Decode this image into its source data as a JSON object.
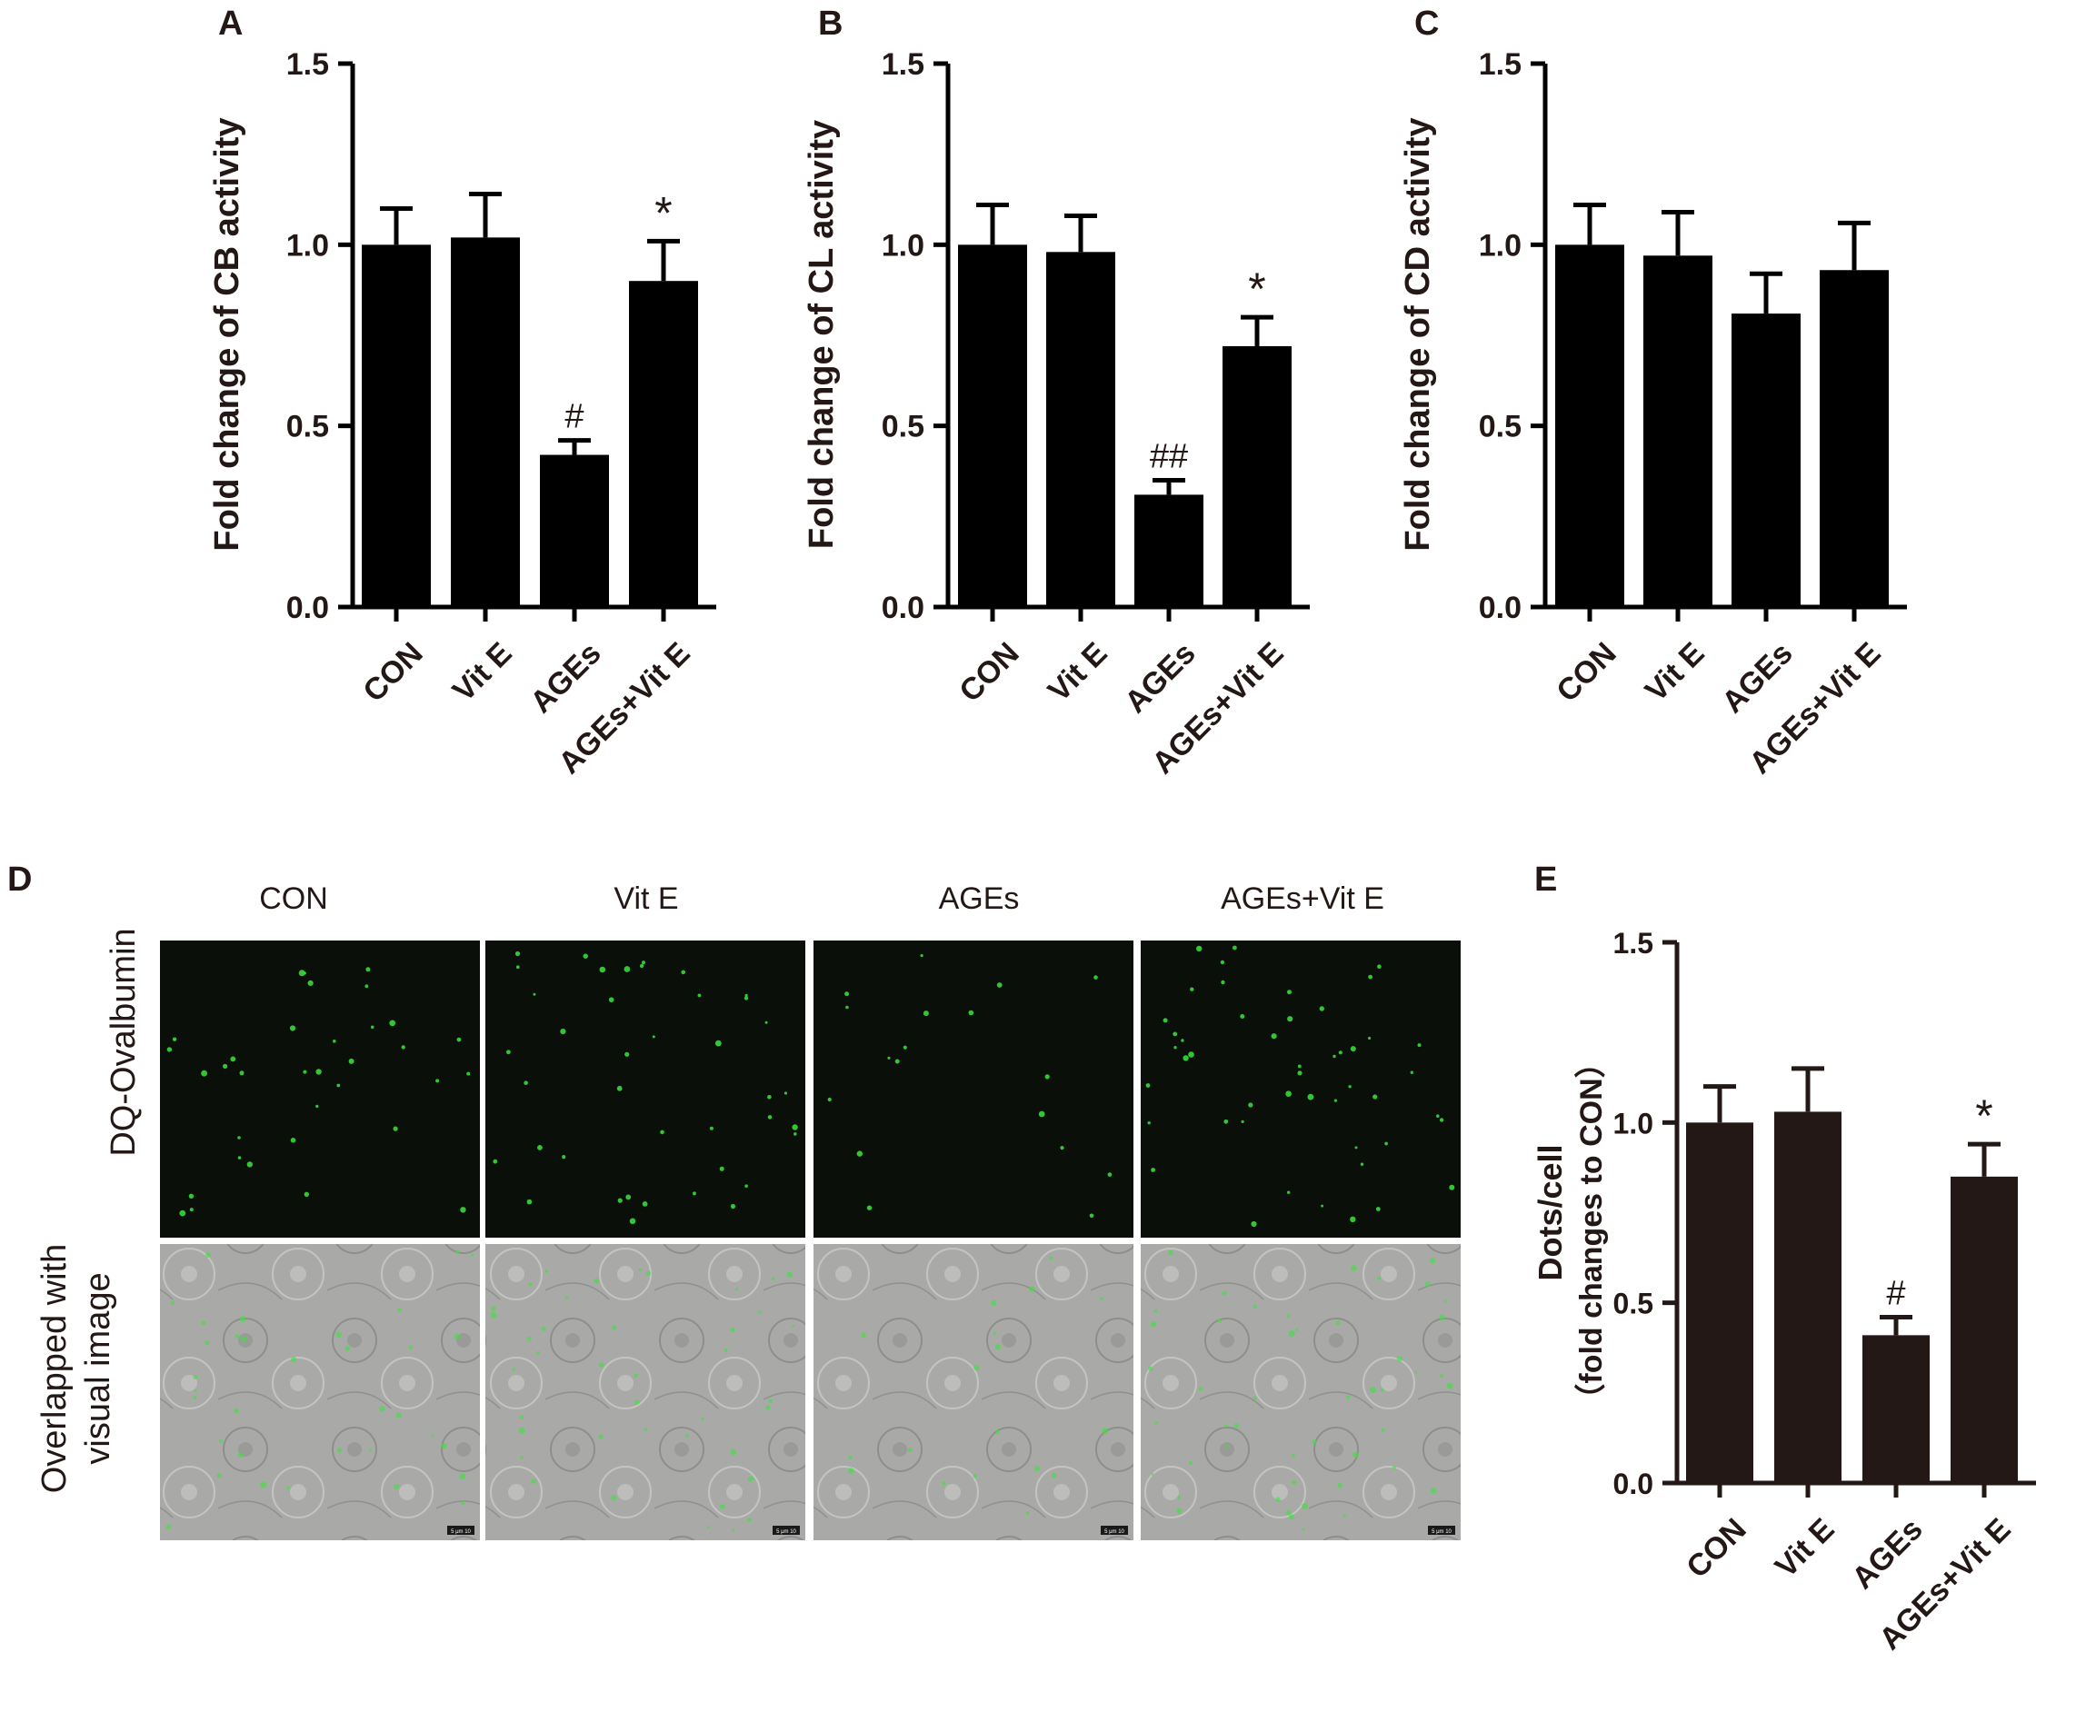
{
  "panel_letters": [
    "A",
    "B",
    "C",
    "D",
    "E"
  ],
  "microscopy": {
    "conditions": [
      "CON",
      "Vit E",
      "AGEs",
      "AGEs+Vit E"
    ],
    "row_labels": [
      "DQ-Ovalbumin",
      "Overlapped with",
      "visual image"
    ],
    "scale_bar_text": "5 μm 10"
  },
  "colors": {
    "bar": "#000000",
    "bar_e": "#231815",
    "text": "#231815",
    "fluorescence": "#39e639",
    "brightfield": "#a9a9a7"
  },
  "chart_data": [
    {
      "panel": "A",
      "type": "bar",
      "categories": [
        "CON",
        "Vit E",
        "AGEs",
        "AGEs+Vit E"
      ],
      "values": [
        1.0,
        1.02,
        0.42,
        0.9
      ],
      "errors": [
        0.1,
        0.12,
        0.04,
        0.11
      ],
      "annotations": [
        "",
        "",
        "#",
        "*"
      ],
      "ylabel": "Fold change of CB activity",
      "ylim": [
        0,
        1.5
      ],
      "yticks": [
        "0.0",
        "0.5",
        "1.0",
        "1.5"
      ]
    },
    {
      "panel": "B",
      "type": "bar",
      "categories": [
        "CON",
        "Vit E",
        "AGEs",
        "AGEs+Vit E"
      ],
      "values": [
        1.0,
        0.98,
        0.31,
        0.72
      ],
      "errors": [
        0.11,
        0.1,
        0.04,
        0.08
      ],
      "annotations": [
        "",
        "",
        "##",
        "*"
      ],
      "ylabel": "Fold change of CL activity",
      "ylim": [
        0,
        1.5
      ],
      "yticks": [
        "0.0",
        "0.5",
        "1.0",
        "1.5"
      ]
    },
    {
      "panel": "C",
      "type": "bar",
      "categories": [
        "CON",
        "Vit E",
        "AGEs",
        "AGEs+Vit E"
      ],
      "values": [
        1.0,
        0.97,
        0.81,
        0.93
      ],
      "errors": [
        0.11,
        0.12,
        0.11,
        0.13
      ],
      "annotations": [
        "",
        "",
        "",
        ""
      ],
      "ylabel": "Fold change of CD activity",
      "ylim": [
        0,
        1.5
      ],
      "yticks": [
        "0.0",
        "0.5",
        "1.0",
        "1.5"
      ]
    },
    {
      "panel": "E",
      "type": "bar",
      "categories": [
        "CON",
        "Vit E",
        "AGEs",
        "AGEs+Vit E"
      ],
      "values": [
        1.0,
        1.03,
        0.41,
        0.85
      ],
      "errors": [
        0.1,
        0.12,
        0.05,
        0.09
      ],
      "annotations": [
        "",
        "",
        "#",
        "*"
      ],
      "ylabel": "Dots/cell",
      "ylabel2": "（fold changes to CON）",
      "ylim": [
        0,
        1.5
      ],
      "yticks": [
        "0.0",
        "0.5",
        "1.0",
        "1.5"
      ]
    }
  ]
}
